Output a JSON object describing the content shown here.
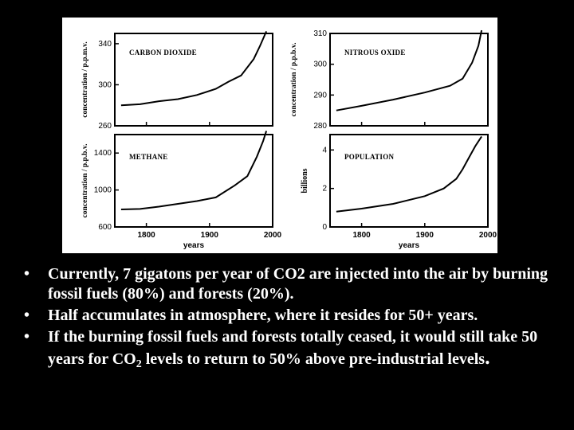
{
  "chart_data": [
    {
      "type": "line",
      "title": "CARBON DIOXIDE",
      "ylabel": "concentration / p.p.m.v.",
      "xlabel": "",
      "ylim": [
        260,
        350
      ],
      "xlim": [
        1750,
        2000
      ],
      "yticks": [
        "340",
        "300",
        "260"
      ],
      "xticks": [],
      "x": [
        1760,
        1790,
        1820,
        1850,
        1880,
        1910,
        1930,
        1950,
        1970,
        1980,
        1990
      ],
      "values": [
        280,
        281,
        284,
        286,
        290,
        296,
        303,
        309,
        325,
        338,
        352
      ]
    },
    {
      "type": "line",
      "title": "NITROUS OXIDE",
      "ylabel": "concentration / p.p.b.v.",
      "xlabel": "",
      "ylim": [
        280,
        310
      ],
      "xlim": [
        1750,
        2000
      ],
      "yticks": [
        "310",
        "300",
        "290",
        "280"
      ],
      "xticks": [],
      "x": [
        1760,
        1800,
        1850,
        1900,
        1940,
        1960,
        1975,
        1985,
        1990
      ],
      "values": [
        285,
        286.5,
        288.5,
        290.8,
        293,
        295.3,
        300.5,
        306,
        311
      ]
    },
    {
      "type": "line",
      "title": "METHANE",
      "ylabel": "concentration / p.p.b.v.",
      "xlabel": "years",
      "ylim": [
        600,
        1600
      ],
      "xlim": [
        1750,
        2000
      ],
      "yticks": [
        "1400",
        "1000",
        "600"
      ],
      "xticks": [
        "1800",
        "1900",
        "2000"
      ],
      "x": [
        1760,
        1790,
        1820,
        1850,
        1880,
        1910,
        1940,
        1960,
        1975,
        1985,
        1990
      ],
      "values": [
        790,
        795,
        820,
        850,
        880,
        920,
        1050,
        1150,
        1360,
        1530,
        1640
      ]
    },
    {
      "type": "line",
      "title": "POPULATION",
      "ylabel": "billions",
      "xlabel": "years",
      "ylim": [
        0,
        4.8
      ],
      "xlim": [
        1750,
        2000
      ],
      "yticks": [
        "4",
        "2",
        "0"
      ],
      "xticks": [
        "1800",
        "1900",
        "2000"
      ],
      "x": [
        1760,
        1800,
        1850,
        1900,
        1930,
        1950,
        1960,
        1970,
        1980,
        1990
      ],
      "values": [
        0.8,
        0.95,
        1.2,
        1.6,
        2.0,
        2.5,
        3.0,
        3.6,
        4.2,
        4.7
      ]
    }
  ],
  "bullets": [
    {
      "text": "Currently, 7 gigatons per year of CO2 are injected into the air by burning fossil fuels (80%) and forests (20%)."
    },
    {
      "text": "Half accumulates in atmosphere, where it resides for 50+ years."
    },
    {
      "pre": "If the burning fossil fuels and forests totally ceased, it would still take 50 years for CO",
      "sub": "2",
      "post": " levels to return to 50% above pre-industrial levels",
      "end": "."
    }
  ],
  "bullet_char": "•"
}
